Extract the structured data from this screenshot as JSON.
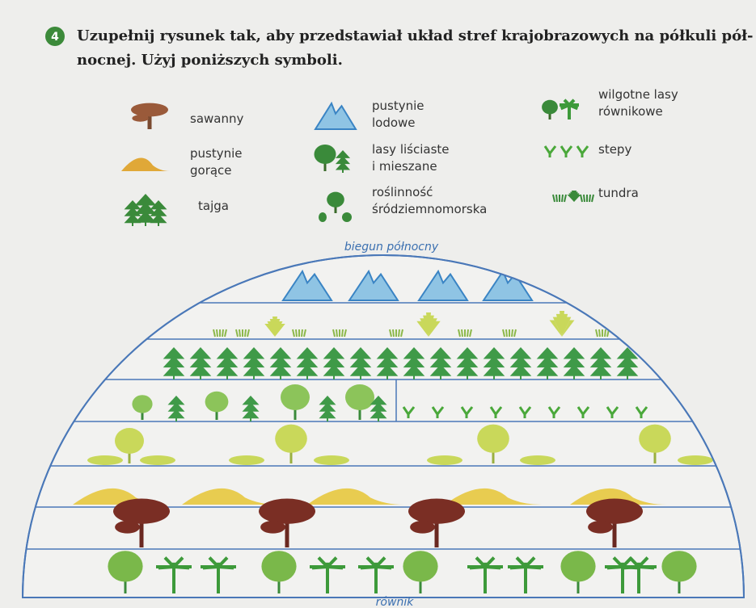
{
  "exercise": {
    "number": "4",
    "instruction_lines": [
      "Uzupełnij rysunek tak, aby przedstawiał układ stref krajobrazowych na półkuli pół-",
      "nocnej. Użyj poniższych symboli."
    ]
  },
  "legend": [
    {
      "lines": [
        "sawanny"
      ]
    },
    {
      "lines": [
        "pustynie",
        "lodowe"
      ]
    },
    {
      "lines": [
        "wilgotne lasy",
        "równikowe"
      ]
    },
    {
      "lines": [
        "pustynie",
        "gorące"
      ]
    },
    {
      "lines": [
        "lasy liściaste",
        "i mieszane"
      ]
    },
    {
      "lines": [
        "stepy"
      ]
    },
    {
      "lines": [
        "tajga"
      ]
    },
    {
      "lines": [
        "roślinność",
        "śródziemnomorska"
      ]
    },
    {
      "lines": [
        "tundra"
      ]
    }
  ],
  "diagram": {
    "top_label": "biegun północny",
    "bottom_label": "równik"
  }
}
